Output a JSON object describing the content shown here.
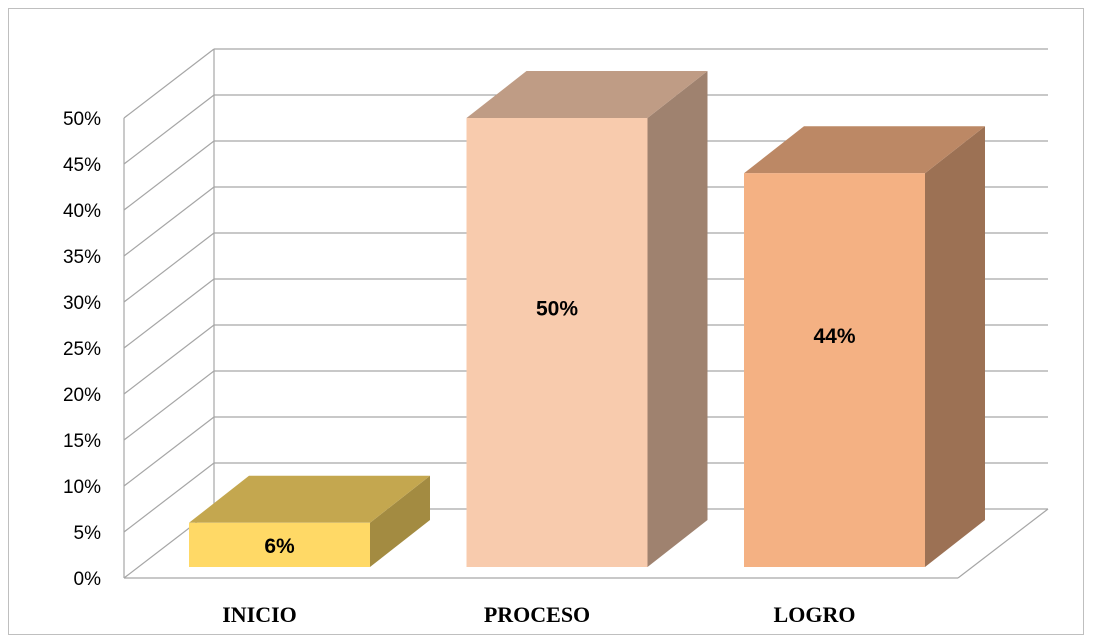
{
  "chart_data": {
    "type": "bar",
    "style": "3d-column",
    "categories": [
      "INICIO",
      "PROCESO",
      "LOGRO"
    ],
    "values": [
      6,
      50,
      44
    ],
    "data_labels": [
      "6%",
      "50%",
      "44%"
    ],
    "colors": [
      "#ffd966",
      "#f8cbad",
      "#f4b183"
    ],
    "ylim": [
      0,
      50
    ],
    "yticks": [
      0,
      5,
      10,
      15,
      20,
      25,
      30,
      35,
      40,
      45,
      50
    ],
    "ytick_labels": [
      "0%",
      "5%",
      "10%",
      "15%",
      "20%",
      "25%",
      "30%",
      "35%",
      "40%",
      "45%",
      "50%"
    ],
    "grid": true,
    "legend": "none"
  }
}
